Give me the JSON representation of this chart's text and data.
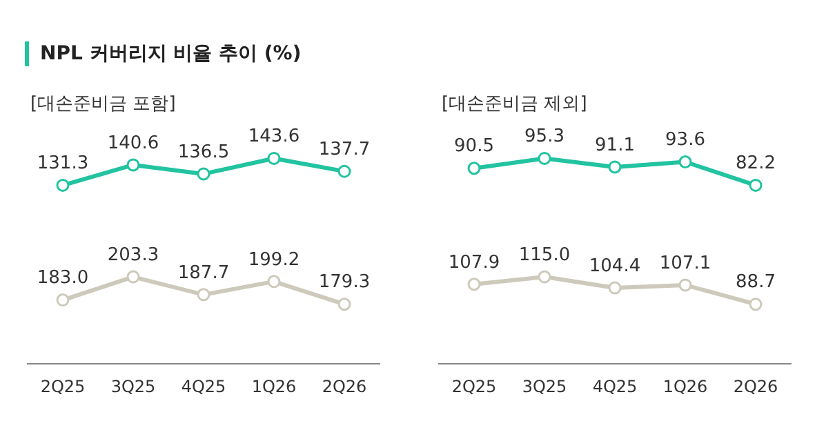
{
  "chart_data": [
    {
      "type": "line",
      "title": "NPL 커버리지 비율 추이 (%)",
      "subtitle": "[대손준비금 포함]",
      "categories": [
        null,
        null,
        null,
        null,
        null
      ],
      "series": [
        {
          "color": "#22c3a0",
          "values": [
            131.3,
            140.6,
            136.5,
            143.6,
            137.7
          ],
          "value_labels": [
            "131.3",
            "140.6",
            "136.5",
            "143.6",
            "137.7"
          ]
        }
      ],
      "tick_labels": false,
      "marker": "circle",
      "grid": false,
      "legend": false
    },
    {
      "type": "line",
      "categories": [
        "2Q25",
        "3Q25",
        "4Q25",
        "1Q26",
        "2Q26"
      ],
      "series": [
        {
          "color": "#cdc9bb",
          "values": [
            183.0,
            203.3,
            187.7,
            199.2,
            179.3
          ],
          "value_labels": [
            "183.0",
            "203.3",
            "187.7",
            "199.2",
            "179.3"
          ]
        }
      ],
      "tick_labels": "x",
      "marker": "circle",
      "grid": false,
      "legend": false
    },
    {
      "type": "line",
      "subtitle": "[대손준비금 제외]",
      "categories": [
        null,
        null,
        null,
        null,
        null
      ],
      "series": [
        {
          "color": "#22c3a0",
          "values": [
            90.5,
            95.3,
            91.1,
            93.6,
            82.2
          ],
          "value_labels": [
            "90.5",
            "95.3",
            "91.1",
            "93.6",
            "82.2"
          ]
        }
      ],
      "tick_labels": false,
      "marker": "circle",
      "grid": false,
      "legend": false
    },
    {
      "type": "line",
      "categories": [
        "2Q25",
        "3Q25",
        "4Q25",
        "1Q26",
        "2Q26"
      ],
      "series": [
        {
          "color": "#cdc9bb",
          "values": [
            107.9,
            115.0,
            104.4,
            107.1,
            88.7
          ],
          "value_labels": [
            "107.9",
            "115.0",
            "104.4",
            "107.1",
            "88.7"
          ]
        }
      ],
      "tick_labels": "x",
      "marker": "circle",
      "grid": false,
      "legend": false
    }
  ]
}
